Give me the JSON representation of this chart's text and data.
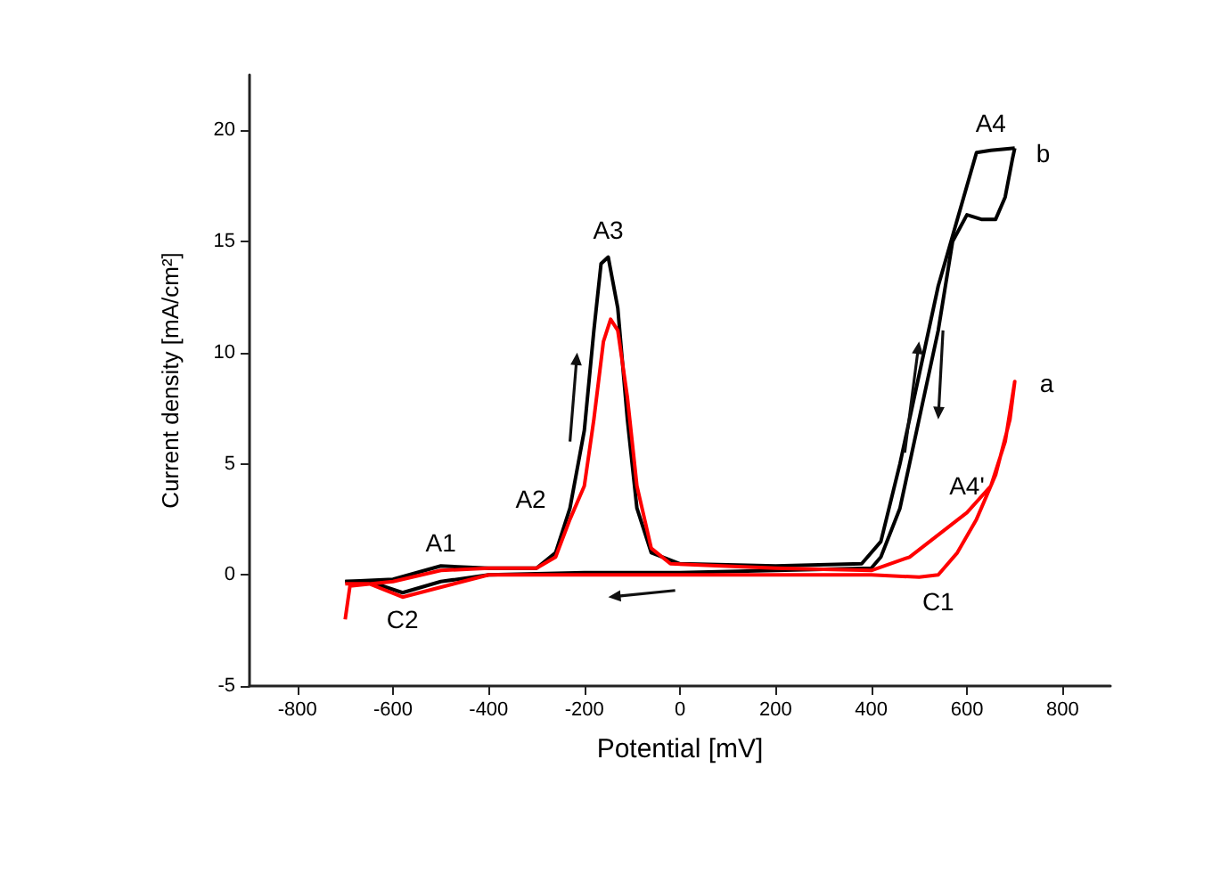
{
  "chart_data": {
    "type": "line",
    "xlabel": "Potential [mV]",
    "ylabel": "Current density [mA/cm²]",
    "xlim": [
      -900,
      900
    ],
    "xticks": [
      -800,
      -600,
      -400,
      -200,
      0,
      200,
      400,
      600,
      800
    ],
    "ylim": [
      -5,
      22.5
    ],
    "yticks": [
      -5,
      0,
      5,
      10,
      15,
      20
    ],
    "grid": false,
    "marker": "none",
    "line_style": "solid",
    "series": [
      {
        "color": "#000000",
        "x": [
          -700,
          -600,
          -500,
          -400,
          -300,
          -260,
          -230,
          -200,
          -180,
          -165,
          -150,
          -130,
          -110,
          -90,
          -60,
          0,
          200,
          380,
          420,
          460,
          500,
          540,
          580,
          620,
          650,
          700
        ],
        "values": [
          -0.3,
          -0.2,
          0.4,
          0.3,
          0.3,
          1,
          3,
          6.5,
          11,
          14,
          14.3,
          12,
          7,
          3,
          1,
          0.5,
          0.4,
          0.5,
          1.5,
          5,
          9,
          13,
          16,
          19,
          19.1,
          19.2
        ]
      },
      {
        "color": "#000000",
        "x": [
          700,
          695,
          680,
          660,
          630,
          600,
          570,
          540,
          500,
          460,
          420,
          400,
          200,
          0,
          -200,
          -400,
          -500,
          -580,
          -650,
          -700
        ],
        "values": [
          19.2,
          18.7,
          17,
          16,
          16,
          16.2,
          15,
          11,
          7,
          3,
          0.8,
          0.3,
          0.2,
          0.1,
          0.1,
          0,
          -0.3,
          -0.8,
          -0.3,
          -0.3
        ]
      },
      {
        "color": "#ff0000",
        "x": [
          -700,
          -690,
          -600,
          -500,
          -400,
          -300,
          -260,
          -230,
          -200,
          -180,
          -160,
          -145,
          -130,
          -110,
          -90,
          -60,
          -20,
          200,
          400,
          480,
          540,
          600,
          650,
          680,
          700,
          690,
          660,
          620,
          580,
          540,
          500,
          400,
          0,
          -400,
          -580,
          -650,
          -700
        ],
        "values": [
          -2,
          -0.5,
          -0.3,
          0.2,
          0.3,
          0.3,
          0.8,
          2.5,
          4,
          7,
          10.5,
          11.5,
          11,
          8,
          4,
          1.2,
          0.5,
          0.3,
          0.2,
          0.8,
          1.8,
          2.8,
          4,
          6,
          8.7,
          7,
          4.5,
          2.5,
          1,
          0,
          -0.1,
          0,
          0,
          0,
          -1,
          -0.4,
          -0.4
        ]
      }
    ],
    "annotations": [
      {
        "text": "A1",
        "x": -500,
        "y": 0.4
      },
      {
        "text": "A2",
        "x": -230,
        "y": 3
      },
      {
        "text": "A3",
        "x": -150,
        "y": 14.3
      },
      {
        "text": "A4",
        "x": 650,
        "y": 19.1
      },
      {
        "text": "b",
        "x": 700,
        "y": 19.2
      },
      {
        "text": "a",
        "x": 700,
        "y": 8.7
      },
      {
        "text": "A4'",
        "x": 600,
        "y": 2.8
      },
      {
        "text": "C1",
        "x": 540,
        "y": 0
      },
      {
        "text": "C2",
        "x": -580,
        "y": -0.8
      }
    ]
  }
}
